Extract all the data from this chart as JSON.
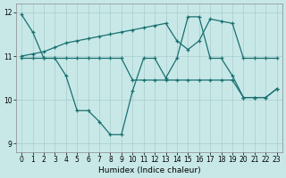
{
  "xlabel": "Humidex (Indice chaleur)",
  "bg_color": "#c8e8e8",
  "grid_color": "#a8cccc",
  "line_color": "#1a7070",
  "xlim": [
    -0.5,
    23.5
  ],
  "ylim": [
    8.8,
    12.2
  ],
  "xticks": [
    0,
    1,
    2,
    3,
    4,
    5,
    6,
    7,
    8,
    9,
    10,
    11,
    12,
    13,
    14,
    15,
    16,
    17,
    18,
    19,
    20,
    21,
    22,
    23
  ],
  "yticks": [
    9,
    10,
    11,
    12
  ],
  "series1_x": [
    0,
    1,
    2,
    3,
    4,
    5,
    6,
    7,
    8,
    9,
    10,
    11,
    12,
    13,
    14,
    15,
    16,
    17,
    18,
    19,
    20,
    21,
    22,
    23
  ],
  "series1_y": [
    11.95,
    11.55,
    10.95,
    10.95,
    10.55,
    9.75,
    9.75,
    9.5,
    9.2,
    9.2,
    10.2,
    10.95,
    10.95,
    10.5,
    10.95,
    11.9,
    11.9,
    10.95,
    10.95,
    10.55,
    10.05,
    10.05,
    10.05,
    10.25
  ],
  "series2_x": [
    0,
    1,
    2,
    3,
    4,
    5,
    6,
    7,
    8,
    9,
    10,
    11,
    12,
    13,
    14,
    15,
    16,
    17,
    18,
    19,
    20,
    21,
    22,
    23
  ],
  "series2_y": [
    10.95,
    10.95,
    10.95,
    10.95,
    10.95,
    10.95,
    10.95,
    10.95,
    10.95,
    10.95,
    10.45,
    10.45,
    10.45,
    10.45,
    10.45,
    10.45,
    10.45,
    10.45,
    10.45,
    10.45,
    10.05,
    10.05,
    10.05,
    10.25
  ],
  "series3_x": [
    0,
    1,
    2,
    3,
    4,
    5,
    6,
    7,
    8,
    9,
    10,
    11,
    12,
    13,
    14,
    15,
    16,
    17,
    18,
    19,
    20,
    21,
    22,
    23
  ],
  "series3_y": [
    11.0,
    11.05,
    11.1,
    11.2,
    11.3,
    11.35,
    11.4,
    11.45,
    11.5,
    11.55,
    11.6,
    11.65,
    11.7,
    11.75,
    11.35,
    11.15,
    11.35,
    11.85,
    11.8,
    11.75,
    10.95,
    10.95,
    10.95,
    10.95
  ]
}
